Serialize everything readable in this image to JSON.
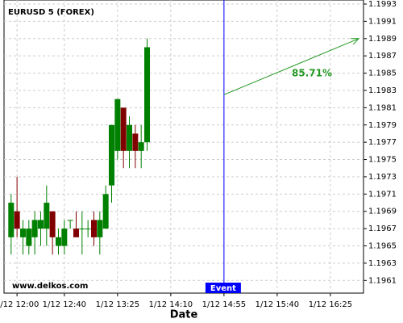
{
  "chart_data": {
    "type": "candlestick",
    "title": "EURUSD 5 (FOREX)",
    "x_label": "Date",
    "watermark": "www.delkos.com",
    "x": [
      "1/12 11:55",
      "1/12 12:00",
      "1/12 12:05",
      "1/12 12:10",
      "1/12 12:15",
      "1/12 12:20",
      "1/12 12:25",
      "1/12 12:30",
      "1/12 12:35",
      "1/12 12:40",
      "1/12 12:45",
      "1/12 12:50",
      "1/12 12:55",
      "1/12 13:00",
      "1/12 13:05",
      "1/12 13:10",
      "1/12 13:15",
      "1/12 13:20",
      "1/12 13:25",
      "1/12 13:30",
      "1/12 13:35",
      "1/12 13:40",
      "1/12 13:45",
      "1/12 13:50"
    ],
    "open": [
      1.1966,
      1.1969,
      1.1966,
      1.1965,
      1.1966,
      1.1967,
      1.1967,
      1.1969,
      1.1965,
      1.1965,
      1.1968,
      1.1967,
      1.1967,
      1.1967,
      1.1968,
      1.1966,
      1.1967,
      1.1972,
      1.1976,
      1.1981,
      1.1976,
      1.1978,
      1.1976,
      1.1977
    ],
    "high": [
      1.1971,
      1.1973,
      1.1968,
      1.1968,
      1.1969,
      1.1969,
      1.1972,
      1.1969,
      1.1967,
      1.1968,
      1.1968,
      1.1969,
      1.1969,
      1.1968,
      1.1969,
      1.1969,
      1.1972,
      1.1979,
      1.1982,
      1.1981,
      1.198,
      1.1979,
      1.1979,
      1.1989
    ],
    "low": [
      1.1964,
      1.1966,
      1.1964,
      1.1964,
      1.1964,
      1.1965,
      1.1965,
      1.1964,
      1.1964,
      1.1964,
      1.1967,
      1.1966,
      1.1964,
      1.1966,
      1.1965,
      1.1964,
      1.1967,
      1.197,
      1.1975,
      1.1974,
      1.1974,
      1.1974,
      1.1974,
      1.1976
    ],
    "close": [
      1.197,
      1.1967,
      1.1967,
      1.1967,
      1.1968,
      1.1968,
      1.197,
      1.1966,
      1.1966,
      1.1967,
      1.1968,
      1.1966,
      1.1967,
      1.1967,
      1.1966,
      1.1968,
      1.1971,
      1.1979,
      1.1982,
      1.1976,
      1.1979,
      1.1976,
      1.1977,
      1.1988
    ],
    "up_color": "#008000",
    "down_color": "#800000",
    "xlim": [
      "1/12 11:49",
      "1/12 16:53"
    ],
    "xticks": [
      "1/12 12:00",
      "1/12 12:40",
      "1/12 13:25",
      "1/12 14:10",
      "1/12 14:55",
      "1/12 15:40",
      "1/12 16:25"
    ],
    "ylim": [
      1.196,
      1.1993
    ],
    "yticks": [
      1.1961,
      1.1963,
      1.1965,
      1.1967,
      1.1969,
      1.1971,
      1.1973,
      1.1975,
      1.1977,
      1.1979,
      1.1981,
      1.1983,
      1.1985,
      1.1987,
      1.1989,
      1.1991,
      1.1993
    ],
    "grid": true,
    "event": {
      "x": "1/12 14:55",
      "label": "Event",
      "color": "#0000ff"
    },
    "forecast": {
      "x": [
        "1/12 14:55",
        "1/12 16:49"
      ],
      "y": [
        1.19825,
        1.1989
      ],
      "label": "85.71%",
      "color": "#229922"
    }
  }
}
